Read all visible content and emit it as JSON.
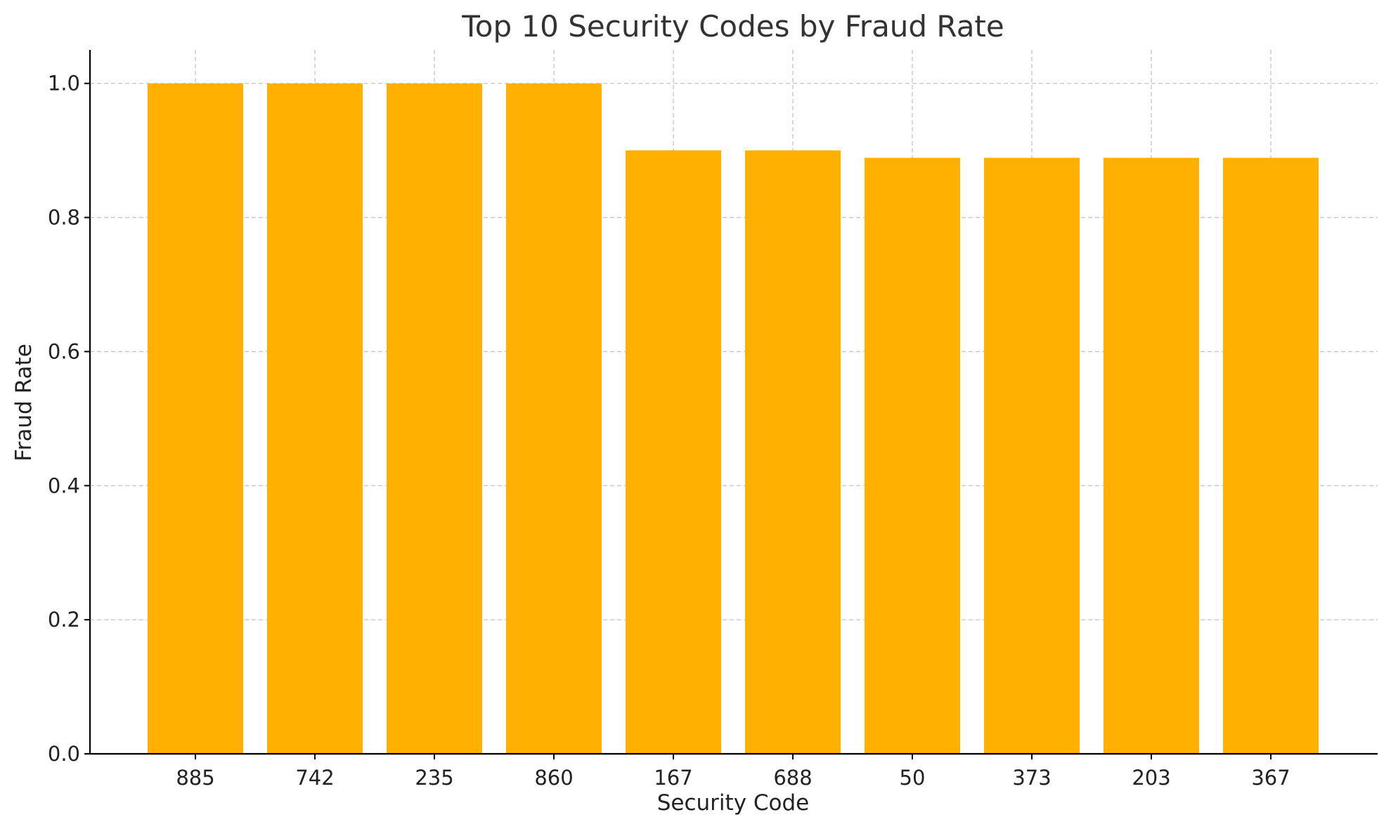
{
  "chart_data": {
    "type": "bar",
    "title": "Top 10 Security Codes by Fraud Rate",
    "xlabel": "Security Code",
    "ylabel": "Fraud Rate",
    "categories": [
      "885",
      "742",
      "235",
      "860",
      "167",
      "688",
      "50",
      "373",
      "203",
      "367"
    ],
    "values": [
      1.0,
      1.0,
      1.0,
      1.0,
      0.9,
      0.9,
      0.889,
      0.889,
      0.889,
      0.889
    ],
    "ylim": [
      0,
      1.05
    ],
    "yticks": [
      "0.0",
      "0.2",
      "0.4",
      "0.6",
      "0.8",
      "1.0"
    ],
    "bar_color": "#FFB000",
    "grid": true,
    "legend": "none"
  }
}
